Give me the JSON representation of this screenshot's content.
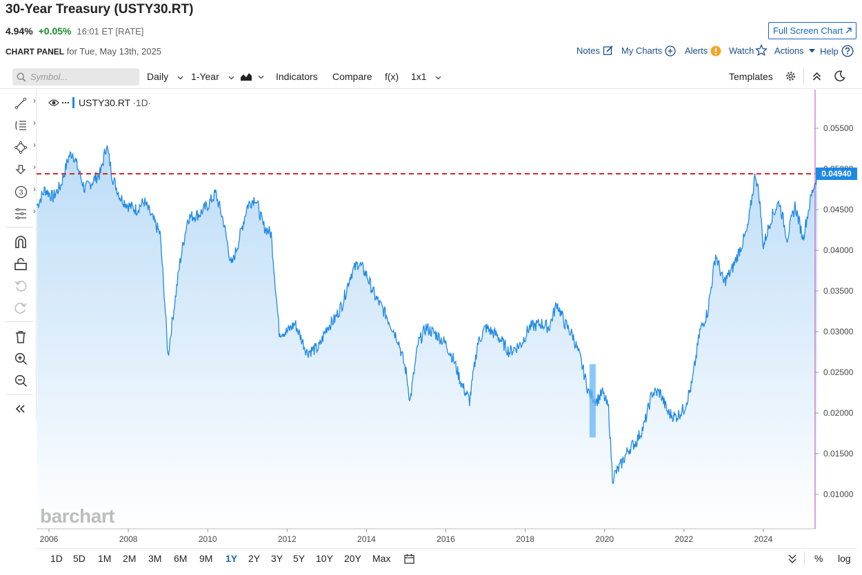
{
  "header": {
    "title": "30-Year Treasury (USTY30.RT)",
    "price": "4.94%",
    "change": "+0.05%",
    "time": "16:01 ET [RATE]",
    "full_screen_label": "Full Screen Chart",
    "panel_label": "CHART PANEL",
    "panel_date": "for Tue, May 13th, 2025"
  },
  "top_links": {
    "notes": "Notes",
    "my_charts": "My Charts",
    "alerts": "Alerts",
    "watch": "Watch",
    "actions": "Actions",
    "help": "Help"
  },
  "toolbar": {
    "search_placeholder": "Symbol...",
    "interval": "Daily",
    "range": "1-Year",
    "indicators": "Indicators",
    "compare": "Compare",
    "fx": "f(x)",
    "layout": "1x1",
    "templates": "Templates"
  },
  "legend": {
    "symbol": "USTY30.RT",
    "interval": "·1D·"
  },
  "price_tag": "0.04940",
  "watermark": "barchart",
  "bottom": {
    "ranges": [
      "1D",
      "5D",
      "1M",
      "2M",
      "3M",
      "6M",
      "9M",
      "1Y",
      "2Y",
      "3Y",
      "5Y",
      "10Y",
      "20Y",
      "Max"
    ],
    "active": "1Y",
    "percent": "%",
    "log": "log"
  },
  "icons": [
    "search-icon",
    "chevron-down-icon",
    "area-chart-icon",
    "gear-icon",
    "collapse-up-icon",
    "moon-icon",
    "edit-icon",
    "plus-circle-icon",
    "alert-icon",
    "star-icon",
    "caret-icon",
    "help-icon",
    "eye-icon",
    "more-icon",
    "trend-line-icon",
    "fib-icon",
    "shape-icon",
    "arrow-down-icon",
    "count-icon",
    "measure-icon",
    "magnet-icon",
    "lock-icon",
    "undo-icon",
    "redo-icon",
    "trash-icon",
    "zoom-in-icon",
    "zoom-out-icon",
    "double-chevron-left-icon",
    "calendar-icon",
    "double-chevron-down-icon",
    "open-external-icon"
  ],
  "colors": {
    "line": "#1e88e5",
    "area_top": "#bcdcf7",
    "area_bottom": "#ffffff",
    "current_line": "#d32f2f",
    "link": "#1a4f8a",
    "positive": "#1a8a2a"
  },
  "chart_data": {
    "type": "area",
    "title": "30-Year Treasury (USTY30.RT)",
    "xlabel": "",
    "ylabel": "",
    "x_ticks": [
      "2006",
      "2008",
      "2010",
      "2012",
      "2014",
      "2016",
      "2018",
      "2020",
      "2022",
      "2024"
    ],
    "y_ticks": [
      "0.05500",
      "0.05000",
      "0.04500",
      "0.04000",
      "0.03500",
      "0.03000",
      "0.02500",
      "0.02000",
      "0.01500",
      "0.01000"
    ],
    "xlim": [
      2005.7,
      2025.8
    ],
    "ylim": [
      0.0072,
      0.0592
    ],
    "current_value": 0.0494,
    "current_line_style": "dashed",
    "grid": false,
    "series": [
      {
        "x": [
          2005.7,
          2005.9,
          2006.1,
          2006.3,
          2006.5,
          2006.6,
          2006.8,
          2006.9,
          2007.1,
          2007.3,
          2007.45,
          2007.6,
          2007.8,
          2008.0,
          2008.2,
          2008.4,
          2008.6,
          2008.8,
          2008.9,
          2009.0,
          2009.1,
          2009.3,
          2009.5,
          2009.8,
          2010.0,
          2010.2,
          2010.4,
          2010.6,
          2010.8,
          2011.0,
          2011.2,
          2011.4,
          2011.6,
          2011.8,
          2012.0,
          2012.2,
          2012.5,
          2012.8,
          2013.0,
          2013.2,
          2013.4,
          2013.6,
          2013.8,
          2014.0,
          2014.2,
          2014.5,
          2014.8,
          2015.0,
          2015.1,
          2015.3,
          2015.5,
          2015.8,
          2016.0,
          2016.2,
          2016.4,
          2016.6,
          2016.8,
          2017.0,
          2017.3,
          2017.6,
          2017.9,
          2018.1,
          2018.4,
          2018.6,
          2018.8,
          2019.0,
          2019.2,
          2019.4,
          2019.6,
          2019.8,
          2019.95,
          2020.1,
          2020.2,
          2020.4,
          2020.6,
          2020.8,
          2021.0,
          2021.2,
          2021.4,
          2021.6,
          2021.8,
          2022.0,
          2022.2,
          2022.4,
          2022.6,
          2022.8,
          2023.0,
          2023.2,
          2023.4,
          2023.6,
          2023.8,
          2023.9,
          2024.0,
          2024.2,
          2024.4,
          2024.6,
          2024.8,
          2025.0,
          2025.2,
          2025.36
        ],
        "values": [
          0.0455,
          0.0475,
          0.0465,
          0.048,
          0.0515,
          0.052,
          0.049,
          0.0475,
          0.0485,
          0.0495,
          0.053,
          0.049,
          0.0465,
          0.0455,
          0.045,
          0.046,
          0.044,
          0.042,
          0.035,
          0.027,
          0.031,
          0.0385,
          0.044,
          0.0445,
          0.0455,
          0.047,
          0.0435,
          0.038,
          0.0415,
          0.0455,
          0.0465,
          0.043,
          0.042,
          0.03,
          0.03,
          0.031,
          0.0275,
          0.028,
          0.0305,
          0.0315,
          0.0335,
          0.037,
          0.0385,
          0.037,
          0.0345,
          0.032,
          0.029,
          0.025,
          0.0215,
          0.0285,
          0.0305,
          0.0295,
          0.0285,
          0.0265,
          0.0235,
          0.0215,
          0.0285,
          0.0305,
          0.0295,
          0.0275,
          0.0285,
          0.0305,
          0.031,
          0.0305,
          0.0335,
          0.031,
          0.0295,
          0.0265,
          0.0225,
          0.0215,
          0.0225,
          0.0205,
          0.012,
          0.0135,
          0.0155,
          0.0165,
          0.0185,
          0.0225,
          0.0225,
          0.02,
          0.0195,
          0.0205,
          0.0235,
          0.03,
          0.0325,
          0.0395,
          0.036,
          0.0375,
          0.04,
          0.0425,
          0.0495,
          0.0465,
          0.0405,
          0.044,
          0.046,
          0.0415,
          0.0455,
          0.0415,
          0.0465,
          0.0494
        ]
      }
    ]
  }
}
